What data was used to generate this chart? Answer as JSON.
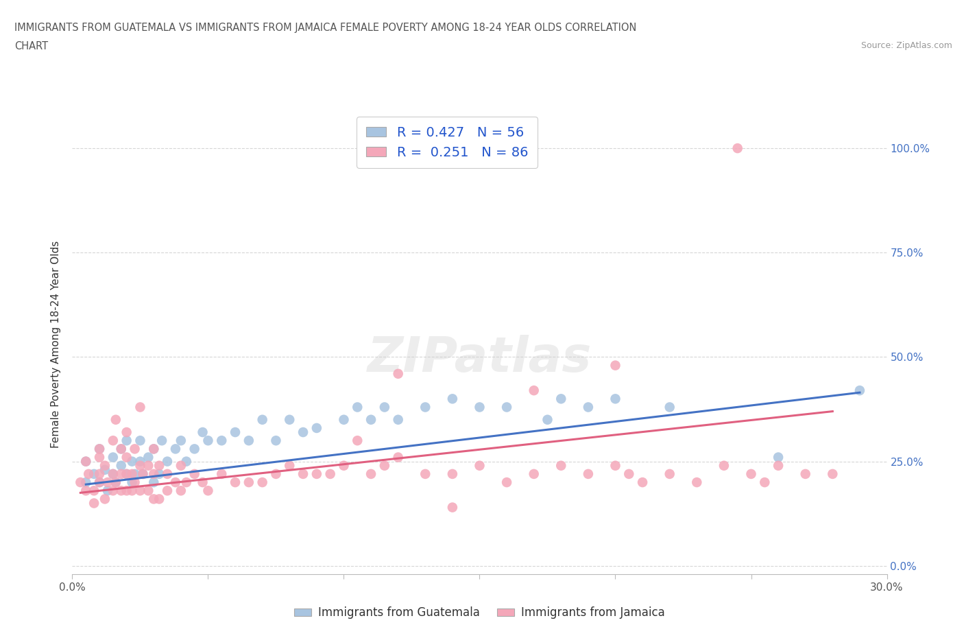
{
  "title_line1": "IMMIGRANTS FROM GUATEMALA VS IMMIGRANTS FROM JAMAICA FEMALE POVERTY AMONG 18-24 YEAR OLDS CORRELATION",
  "title_line2": "CHART",
  "source": "Source: ZipAtlas.com",
  "ylabel": "Female Poverty Among 18-24 Year Olds",
  "xlim": [
    0.0,
    0.3
  ],
  "ylim": [
    -0.02,
    1.08
  ],
  "xtick_positions": [
    0.0,
    0.05,
    0.1,
    0.15,
    0.2,
    0.25,
    0.3
  ],
  "xticklabels": [
    "0.0%",
    "",
    "",
    "",
    "",
    "",
    "30.0%"
  ],
  "ytick_positions": [
    0.0,
    0.25,
    0.5,
    0.75,
    1.0
  ],
  "ytick_labels_right": [
    "0.0%",
    "25.0%",
    "50.0%",
    "75.0%",
    "100.0%"
  ],
  "r_guatemala": 0.427,
  "n_guatemala": 56,
  "r_jamaica": 0.251,
  "n_jamaica": 86,
  "color_guatemala": "#a8c4e0",
  "color_jamaica": "#f4a7b9",
  "line_color_guatemala": "#4472c4",
  "line_color_jamaica": "#e06080",
  "guatemala_x": [
    0.005,
    0.005,
    0.008,
    0.01,
    0.01,
    0.012,
    0.013,
    0.015,
    0.015,
    0.016,
    0.018,
    0.018,
    0.02,
    0.02,
    0.022,
    0.022,
    0.023,
    0.025,
    0.025,
    0.026,
    0.028,
    0.03,
    0.03,
    0.032,
    0.033,
    0.035,
    0.038,
    0.04,
    0.042,
    0.045,
    0.048,
    0.05,
    0.055,
    0.06,
    0.065,
    0.07,
    0.075,
    0.08,
    0.085,
    0.09,
    0.1,
    0.105,
    0.11,
    0.115,
    0.12,
    0.13,
    0.14,
    0.15,
    0.16,
    0.175,
    0.18,
    0.19,
    0.2,
    0.22,
    0.26,
    0.29
  ],
  "guatemala_y": [
    0.2,
    0.25,
    0.22,
    0.2,
    0.28,
    0.23,
    0.18,
    0.22,
    0.26,
    0.2,
    0.24,
    0.28,
    0.22,
    0.3,
    0.2,
    0.25,
    0.22,
    0.25,
    0.3,
    0.22,
    0.26,
    0.2,
    0.28,
    0.22,
    0.3,
    0.25,
    0.28,
    0.3,
    0.25,
    0.28,
    0.32,
    0.3,
    0.3,
    0.32,
    0.3,
    0.35,
    0.3,
    0.35,
    0.32,
    0.33,
    0.35,
    0.38,
    0.35,
    0.38,
    0.35,
    0.38,
    0.4,
    0.38,
    0.38,
    0.35,
    0.4,
    0.38,
    0.4,
    0.38,
    0.26,
    0.42
  ],
  "jamaica_x": [
    0.003,
    0.005,
    0.005,
    0.006,
    0.008,
    0.008,
    0.01,
    0.01,
    0.01,
    0.01,
    0.012,
    0.012,
    0.013,
    0.015,
    0.015,
    0.015,
    0.016,
    0.016,
    0.018,
    0.018,
    0.018,
    0.02,
    0.02,
    0.02,
    0.02,
    0.022,
    0.022,
    0.023,
    0.023,
    0.025,
    0.025,
    0.025,
    0.026,
    0.028,
    0.028,
    0.03,
    0.03,
    0.03,
    0.032,
    0.032,
    0.035,
    0.035,
    0.038,
    0.04,
    0.04,
    0.042,
    0.045,
    0.048,
    0.05,
    0.055,
    0.06,
    0.065,
    0.07,
    0.075,
    0.08,
    0.085,
    0.09,
    0.095,
    0.1,
    0.105,
    0.11,
    0.115,
    0.12,
    0.13,
    0.14,
    0.15,
    0.16,
    0.17,
    0.18,
    0.19,
    0.2,
    0.205,
    0.21,
    0.22,
    0.23,
    0.24,
    0.25,
    0.255,
    0.26,
    0.27,
    0.28,
    0.12,
    0.14,
    0.17,
    0.2,
    0.245
  ],
  "jamaica_y": [
    0.2,
    0.18,
    0.25,
    0.22,
    0.18,
    0.15,
    0.22,
    0.2,
    0.26,
    0.28,
    0.16,
    0.24,
    0.2,
    0.18,
    0.22,
    0.3,
    0.2,
    0.35,
    0.18,
    0.22,
    0.28,
    0.18,
    0.22,
    0.26,
    0.32,
    0.18,
    0.22,
    0.2,
    0.28,
    0.18,
    0.24,
    0.38,
    0.22,
    0.18,
    0.24,
    0.16,
    0.22,
    0.28,
    0.16,
    0.24,
    0.18,
    0.22,
    0.2,
    0.18,
    0.24,
    0.2,
    0.22,
    0.2,
    0.18,
    0.22,
    0.2,
    0.2,
    0.2,
    0.22,
    0.24,
    0.22,
    0.22,
    0.22,
    0.24,
    0.3,
    0.22,
    0.24,
    0.26,
    0.22,
    0.22,
    0.24,
    0.2,
    0.22,
    0.24,
    0.22,
    0.24,
    0.22,
    0.2,
    0.22,
    0.2,
    0.24,
    0.22,
    0.2,
    0.24,
    0.22,
    0.22,
    0.46,
    0.14,
    0.42,
    0.48,
    1.0
  ],
  "trend_g_x0": 0.005,
  "trend_g_x1": 0.29,
  "trend_g_y0": 0.195,
  "trend_g_y1": 0.415,
  "trend_j_x0": 0.003,
  "trend_j_x1": 0.28,
  "trend_j_y0": 0.175,
  "trend_j_y1": 0.37
}
